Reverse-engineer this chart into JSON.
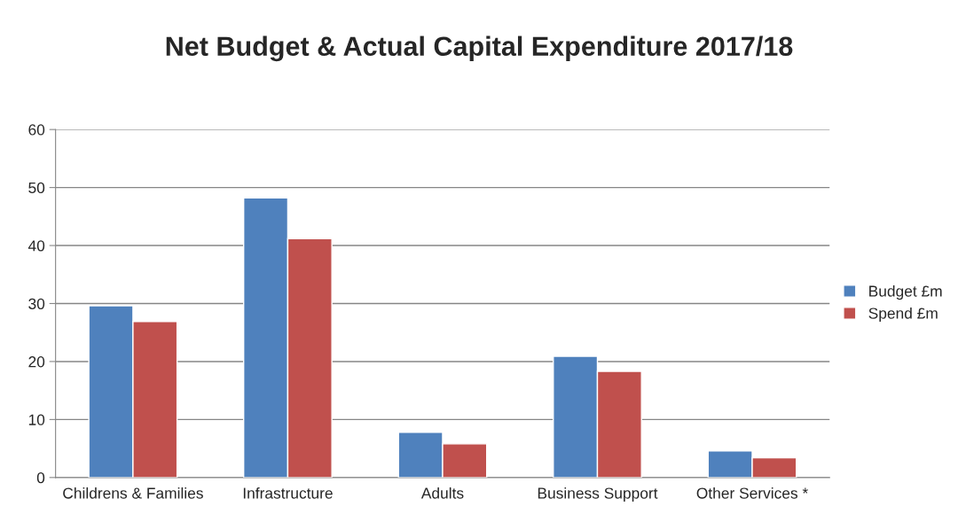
{
  "chart_data": {
    "type": "bar",
    "title": "Net Budget & Actual Capital Expenditure 2017/18",
    "categories": [
      "Childrens & Families",
      "Infrastructure",
      "Adults",
      "Business Support",
      "Other Services *"
    ],
    "series": [
      {
        "name": "Budget £m",
        "color": "#4f81bd",
        "values": [
          29.6,
          48.2,
          7.8,
          20.9,
          4.6
        ]
      },
      {
        "name": "Spend £m",
        "color": "#c0504d",
        "values": [
          26.9,
          41.2,
          5.8,
          18.3,
          3.4
        ]
      }
    ],
    "ylim": [
      0,
      60
    ],
    "yticks": [
      0,
      10,
      20,
      30,
      40,
      50,
      60
    ],
    "grid": "y",
    "legend": "right"
  }
}
